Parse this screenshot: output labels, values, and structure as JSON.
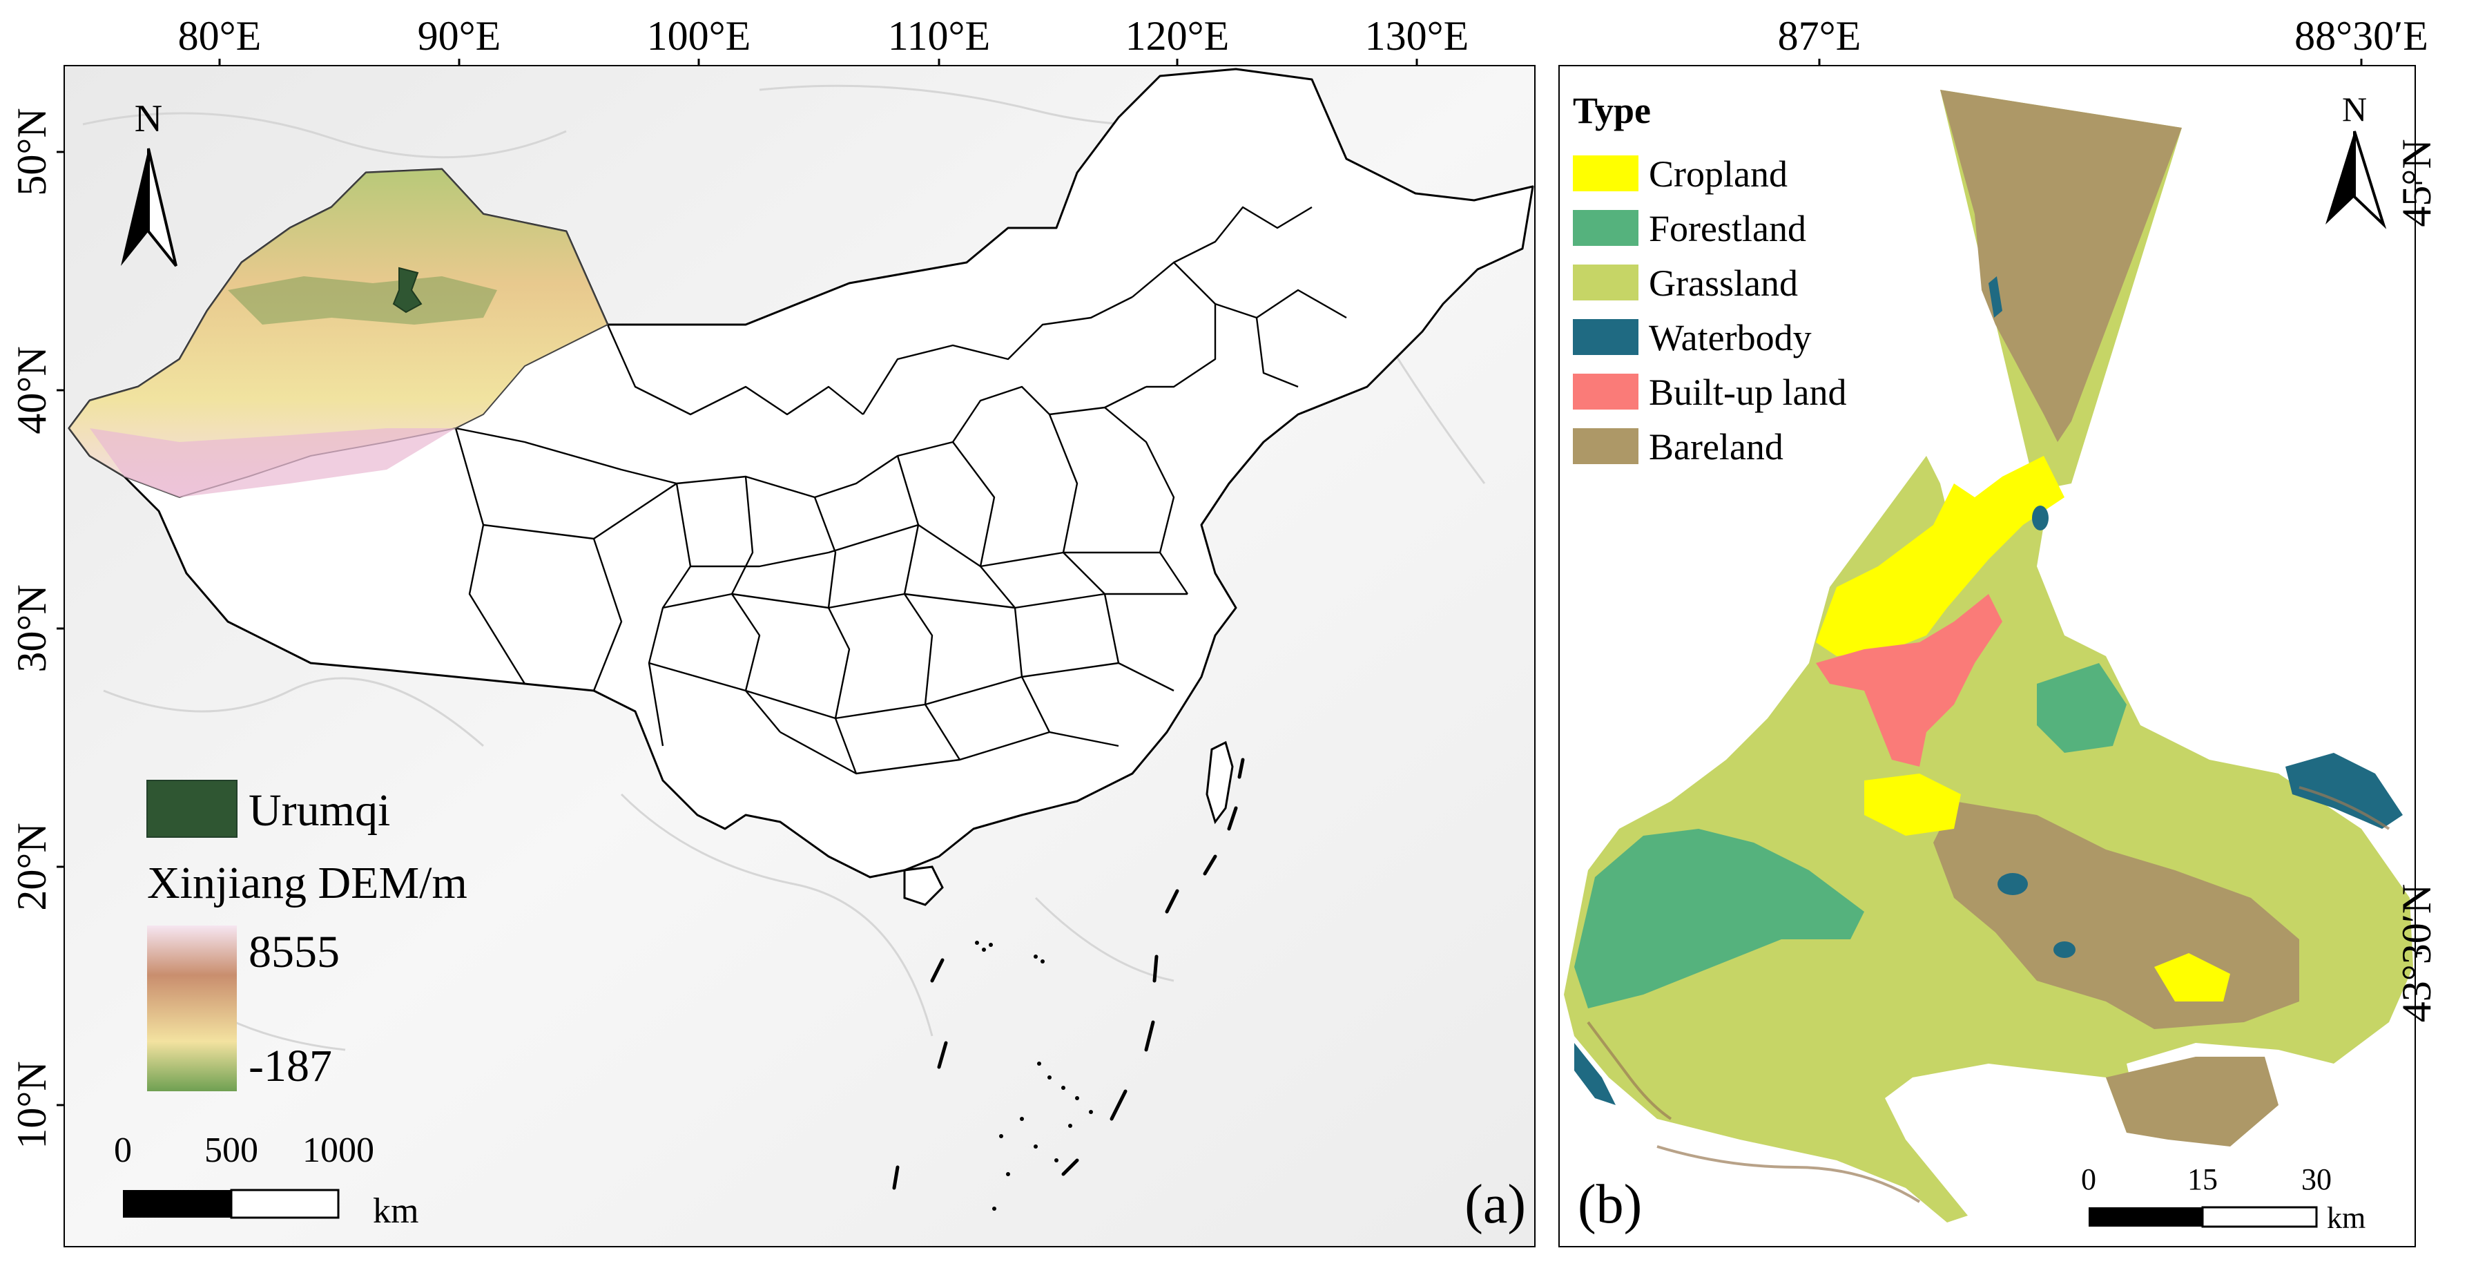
{
  "panel_a": {
    "top_ticks": [
      "80°E",
      "90°E",
      "100°E",
      "110°E",
      "120°E",
      "130°E"
    ],
    "left_ticks": [
      "50°N",
      "40°N",
      "30°N",
      "20°N",
      "10°N"
    ],
    "north": "N",
    "legend": {
      "urumqi": "Urumqi",
      "dem_title": "Xinjiang DEM/m",
      "dem_max": "8555",
      "dem_min": "-187"
    },
    "scale": {
      "ticks": [
        "0",
        "500",
        "1000"
      ],
      "unit": "km"
    },
    "label": "(a)",
    "colors": {
      "dem_high": "#f3dcec",
      "dem_mid1": "#c98e6e",
      "dem_mid2": "#f3e2a0",
      "dem_low": "#6fa052"
    }
  },
  "panel_b": {
    "top_ticks": [
      "87°E",
      "88°30′E"
    ],
    "right_ticks": [
      "45°N",
      "43°30′N"
    ],
    "north": "N",
    "legend": {
      "title": "Type",
      "items": [
        {
          "label": "Cropland",
          "color": "#ffff00"
        },
        {
          "label": "Forestland",
          "color": "#55b27d"
        },
        {
          "label": "Grassland",
          "color": "#c6d566"
        },
        {
          "label": "Waterbody",
          "color": "#1f6a82"
        },
        {
          "label": "Built-up land",
          "color": "#fa7b78"
        },
        {
          "label": "Bareland",
          "color": "#ad9867"
        }
      ]
    },
    "scale": {
      "ticks": [
        "0",
        "15",
        "30"
      ],
      "unit": "km"
    },
    "label": "(b)"
  }
}
